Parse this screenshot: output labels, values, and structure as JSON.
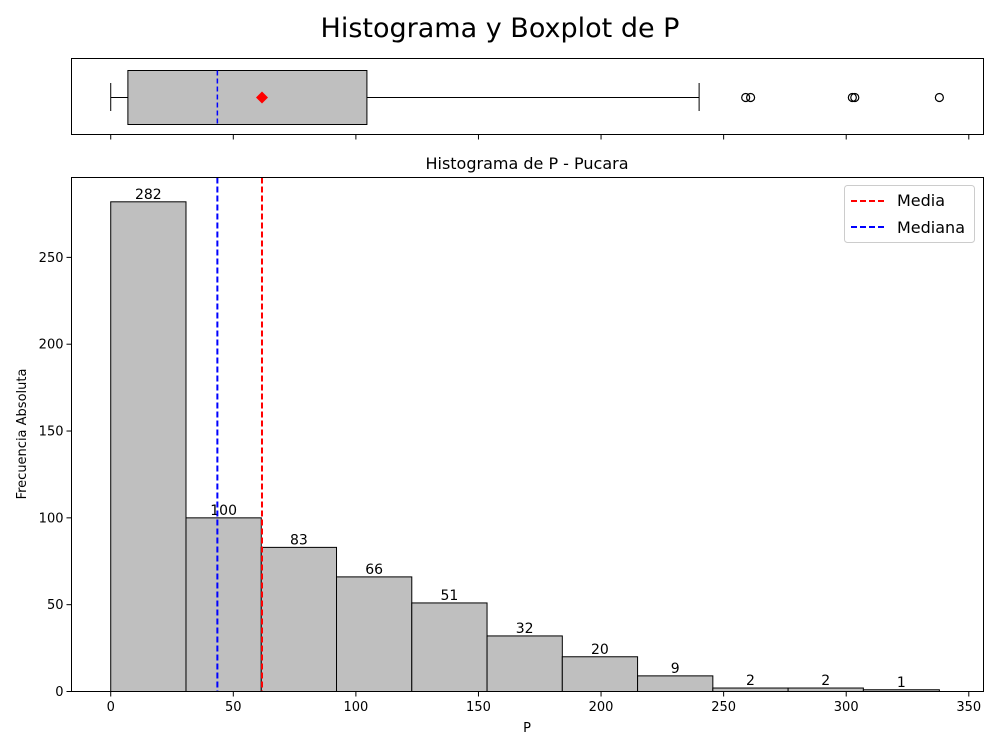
{
  "suptitle": "Histograma y Boxplot de P",
  "chart_data": [
    {
      "type": "boxplot",
      "variable": "P",
      "whisker_low": 0,
      "q1": 7,
      "median": 43.5,
      "mean": 61.7,
      "q3": 104.5,
      "whisker_high": 240,
      "outliers": [
        259,
        261,
        302.5,
        303.5,
        338
      ],
      "xlim": [
        -16,
        356
      ],
      "colors": {
        "box_fill": "#bfbfbf",
        "median_line": "#0000ff",
        "mean_marker": "#ff0000"
      }
    },
    {
      "type": "bar",
      "title": "Histograma de P - Pucara",
      "xlabel": "P",
      "ylabel": "Frecuencia Absoluta",
      "bin_edges": [
        0,
        30.7,
        61.4,
        92.1,
        122.8,
        153.5,
        184.2,
        214.9,
        245.6,
        276.3,
        307,
        338
      ],
      "values": [
        282,
        100,
        83,
        66,
        51,
        32,
        20,
        9,
        2,
        2,
        1
      ],
      "xlim": [
        -16,
        356
      ],
      "ylim": [
        0,
        296
      ],
      "xticks": [
        0,
        50,
        100,
        150,
        200,
        250,
        300,
        350
      ],
      "yticks": [
        0,
        50,
        100,
        150,
        200,
        250
      ],
      "mean": 61.7,
      "median": 43.5,
      "legend": [
        {
          "label": "Media",
          "color": "#ff0000"
        },
        {
          "label": "Mediana",
          "color": "#0000ff"
        }
      ],
      "legend_position": "top-right",
      "grid": false,
      "colors": {
        "bar_fill": "#bfbfbf"
      }
    }
  ]
}
